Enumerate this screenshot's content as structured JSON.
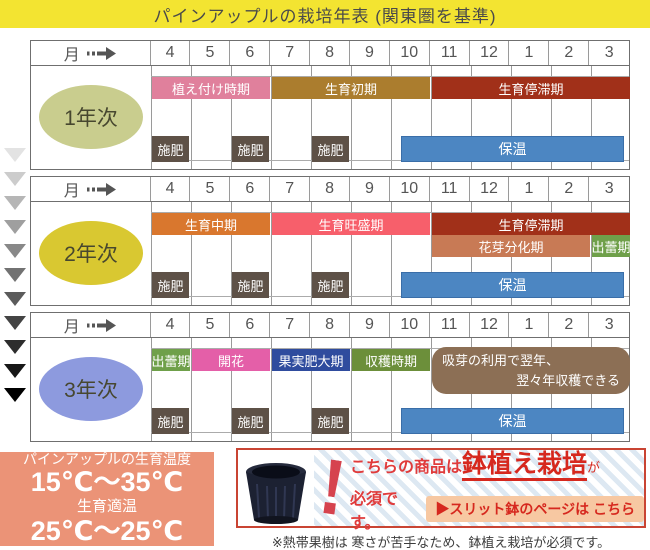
{
  "title": "パインアップルの栽培年表 (関東圏を基準)",
  "colors": {
    "title_bg": "#f3e431",
    "temp_box_bg": "#eb9377",
    "stagnation_red": "#a13019",
    "warm_blue": "#4c86c2",
    "fertilize_gray": "#5e5147"
  },
  "month_header": {
    "label": "月"
  },
  "months": [
    "4",
    "5",
    "6",
    "7",
    "8",
    "9",
    "10",
    "11",
    "12",
    "1",
    "2",
    "3"
  ],
  "actions": {
    "fertilize_label": "施肥",
    "fertilize_color": "#5e5147",
    "fertilize_months": [
      0,
      2,
      4
    ],
    "warm_label": "保温",
    "warm_color": "#4c86c2"
  },
  "tables": [
    {
      "year": "1年次",
      "oval_color": "#c9cd8e",
      "bars": [
        {
          "row": 0,
          "start": 0,
          "span": 3,
          "label": "植え付け時期",
          "color": "#e0809c"
        },
        {
          "row": 0,
          "start": 3,
          "span": 4,
          "label": "生育初期",
          "color": "#ab7d2e"
        },
        {
          "row": 0,
          "start": 7,
          "span": 5,
          "label": "生育停滞期",
          "color": "#a13019"
        }
      ]
    },
    {
      "year": "2年次",
      "oval_color": "#d9c831",
      "bars": [
        {
          "row": 0,
          "start": 0,
          "span": 3,
          "label": "生育中期",
          "color": "#d9772e"
        },
        {
          "row": 0,
          "start": 3,
          "span": 4,
          "label": "生育旺盛期",
          "color": "#f75f6b"
        },
        {
          "row": 0,
          "start": 7,
          "span": 5,
          "label": "生育停滞期",
          "color": "#a13019"
        },
        {
          "row": 1,
          "start": 7,
          "span": 4,
          "label": "花芽分化期",
          "color": "#c87a55"
        },
        {
          "row": 1,
          "start": 11,
          "span": 1,
          "label": "出蕾期",
          "color": "#6fa04a"
        }
      ]
    },
    {
      "year": "3年次",
      "oval_color": "#8d9ade",
      "bars": [
        {
          "row": 0,
          "start": 0,
          "span": 1,
          "label": "出蕾期",
          "color": "#6fa04a"
        },
        {
          "row": 0,
          "start": 1,
          "span": 2,
          "label": "開花",
          "color": "#e45fa8"
        },
        {
          "row": 0,
          "start": 3,
          "span": 2,
          "label": "果実肥大期",
          "color": "#2f4c9e"
        },
        {
          "row": 0,
          "start": 5,
          "span": 2,
          "label": "収穫時期",
          "color": "#6c8f3a"
        },
        {
          "row": 0,
          "start": 7,
          "span": 5,
          "label": "吸芽の利用で翌年、翌々年収穫できる",
          "color": "#8c6f55",
          "rounded": true,
          "lines": [
            "吸芽の利用で翌年、",
            "翌々年収穫できる"
          ]
        }
      ]
    }
  ],
  "temp_box": {
    "line1": "パインアップルの生育温度",
    "line2": "15℃〜35℃",
    "line3": "生育適温",
    "line4": "25℃〜25℃"
  },
  "notice": {
    "exclamation": "!",
    "prefix": "こちらの商品は",
    "em": "鉢植え栽培",
    "suffix": "が",
    "must": "必須です。",
    "button": "▶スリット鉢のページは こちら",
    "note": "※熱帯果樹は 寒さが苦手なため、鉢植え栽培が必須です。"
  }
}
